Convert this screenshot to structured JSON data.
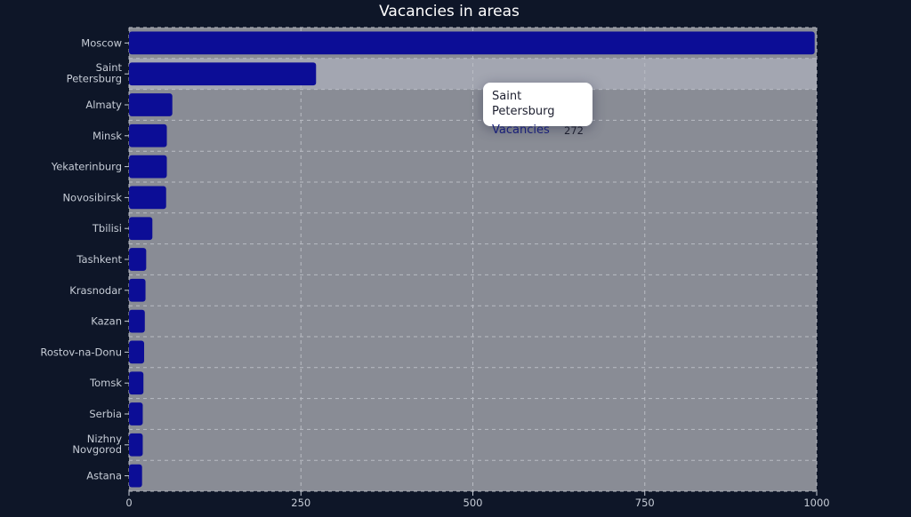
{
  "chart_data": {
    "type": "bar",
    "orientation": "horizontal",
    "title": "Vacancies in areas",
    "xlabel": "",
    "ylabel": "",
    "categories": [
      "Moscow",
      "Saint Petersburg",
      "Almaty",
      "Minsk",
      "Yekaterinburg",
      "Novosibirsk",
      "Tbilisi",
      "Tashkent",
      "Krasnodar",
      "Kazan",
      "Rostov-na-Donu",
      "Tomsk",
      "Serbia",
      "Nizhny Novgorod",
      "Astana"
    ],
    "series": [
      {
        "name": "Vacancies",
        "values": [
          997,
          272,
          63,
          55,
          55,
          54,
          34,
          25,
          24,
          23,
          22,
          21,
          20,
          20,
          19
        ]
      }
    ],
    "xlim": [
      0,
      1000
    ],
    "xticks": [
      0,
      250,
      500,
      750,
      1000
    ],
    "grid": true,
    "legend": "none",
    "colors": {
      "bar": "#0c0d96",
      "plot_bg": "#898c95",
      "highlight_bg": "#a3a6b1",
      "page_bg": "#0e1628",
      "grid": "#b9bcc4"
    }
  },
  "tooltip": {
    "title": "Saint Petersburg",
    "series_name": "Vacancies",
    "value": "272",
    "highlight_index": 1
  }
}
